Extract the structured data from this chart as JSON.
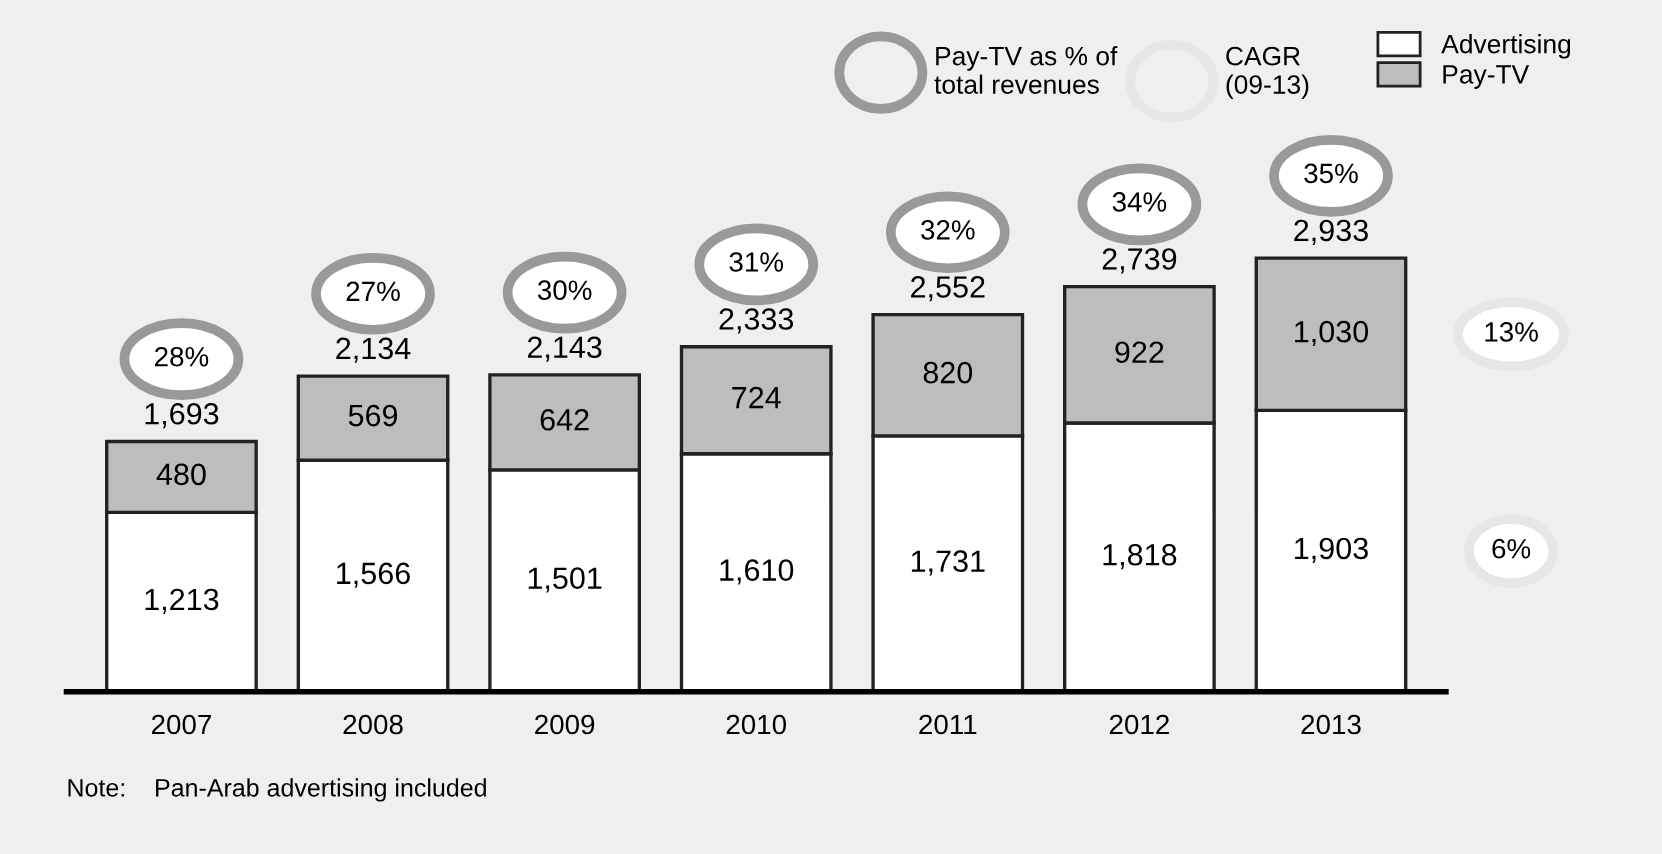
{
  "chart_data": {
    "type": "bar",
    "stacked": true,
    "legend": "top right",
    "grid": false,
    "categories": [
      "2007",
      "2008",
      "2009",
      "2010",
      "2011",
      "2012",
      "2013"
    ],
    "series": [
      {
        "name": "Advertising",
        "color": "#ffffff",
        "values": [
          1213,
          1566,
          1501,
          1610,
          1731,
          1818,
          1903
        ],
        "value_labels": [
          "1,213",
          "1,566",
          "1,501",
          "1,610",
          "1,731",
          "1,818",
          "1,903"
        ]
      },
      {
        "name": "Pay-TV",
        "color": "#bdbdbd",
        "values": [
          480,
          569,
          642,
          724,
          820,
          922,
          1030
        ],
        "value_labels": [
          "480",
          "569",
          "642",
          "724",
          "820",
          "922",
          "1,030"
        ]
      }
    ],
    "totals": [
      "1,693",
      "2,134",
      "2,143",
      "2,333",
      "2,552",
      "2,739",
      "2,933"
    ],
    "annotations": [
      "28%",
      "27%",
      "30%",
      "31%",
      "32%",
      "34%",
      "35%",
      "6%",
      "13%",
      "Pay-TV as % of\ntotal revenues",
      "CAGR\n(09-13)",
      "Note:    Pan-Arab advertising included"
    ]
  }
}
